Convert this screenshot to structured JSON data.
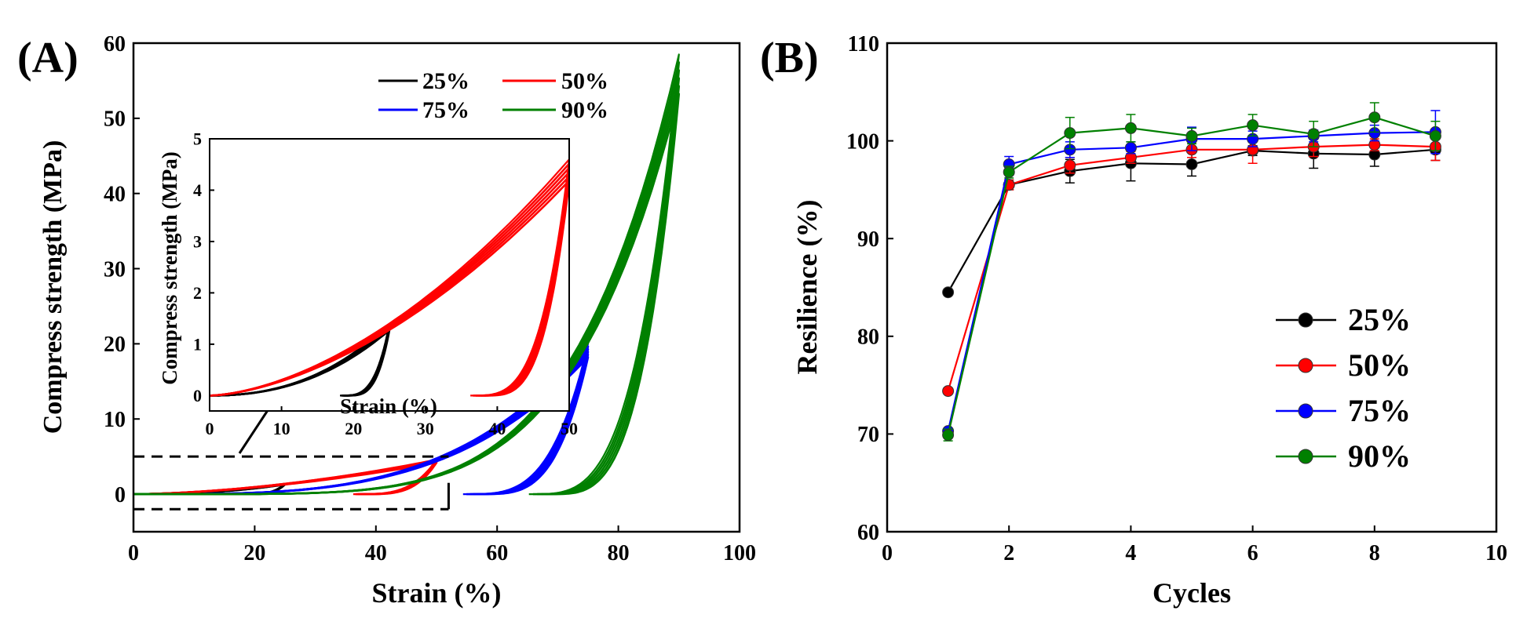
{
  "colors": {
    "s25": "#000000",
    "s50": "#ff0000",
    "s75": "#0000ff",
    "s90": "#008000"
  },
  "chart_data": [
    {
      "panel_label": "(A)",
      "type": "line",
      "title": "",
      "xlabel": "Strain (%)",
      "ylabel": "Compress strength (MPa)",
      "xlim": [
        0,
        100
      ],
      "ylim": [
        -5,
        60
      ],
      "xticks": [
        "0",
        "20",
        "40",
        "60",
        "80",
        "100"
      ],
      "yticks": [
        "0",
        "10",
        "20",
        "30",
        "40",
        "50",
        "60"
      ],
      "legend": {
        "placement": "top-right",
        "entries": [
          "25%",
          "50%",
          "75%",
          "90%"
        ]
      },
      "series": [
        {
          "name": "25%",
          "max_strain": 25,
          "peak": 1.4,
          "loading_n": 2.2,
          "unload_start": 10
        },
        {
          "name": "50%",
          "max_strain": 50,
          "peak": 4.6,
          "loading_n": 1.6,
          "unload_start": 2
        },
        {
          "name": "75%",
          "max_strain": 75,
          "peak": 20.0,
          "loading_n": 3.4,
          "unload_start": 0
        },
        {
          "name": "90%",
          "max_strain": 90,
          "peak": 58.5,
          "loading_n": 5.2,
          "unload_start": 0
        }
      ],
      "inset": {
        "xlabel": "Strain (%)",
        "ylabel": "Compress strength (MPa)",
        "xlim": [
          0,
          50
        ],
        "ylim": [
          -0.3,
          5
        ],
        "xticks": [
          "0",
          "10",
          "20",
          "30",
          "40",
          "50"
        ],
        "yticks": [
          "0",
          "1",
          "2",
          "3",
          "4",
          "5"
        ],
        "series_shown": [
          "25%",
          "50%"
        ],
        "zoom_region": {
          "x": [
            0,
            52
          ],
          "y": [
            -2,
            5
          ]
        }
      }
    },
    {
      "panel_label": "(B)",
      "type": "line",
      "title": "",
      "xlabel": "Cycles",
      "ylabel": "Resilience (%)",
      "xlim": [
        0,
        10
      ],
      "ylim": [
        60,
        110
      ],
      "xticks": [
        "0",
        "2",
        "4",
        "6",
        "8",
        "10"
      ],
      "yticks": [
        "60",
        "70",
        "80",
        "90",
        "100",
        "110"
      ],
      "legend": {
        "placement": "bottom-right",
        "entries": [
          "25%",
          "50%",
          "75%",
          "90%"
        ]
      },
      "x": [
        1,
        2,
        3,
        4,
        5,
        6,
        7,
        8,
        9
      ],
      "series": [
        {
          "name": "25%",
          "values": [
            84.5,
            95.5,
            96.9,
            97.7,
            97.6,
            99.0,
            98.7,
            98.6,
            99.1
          ],
          "errors": [
            0,
            0.5,
            1.2,
            1.8,
            1.2,
            0.5,
            1.5,
            1.2,
            1.1
          ]
        },
        {
          "name": "50%",
          "values": [
            74.4,
            95.5,
            97.5,
            98.3,
            99.1,
            99.1,
            99.4,
            99.6,
            99.4
          ],
          "errors": [
            0,
            0.5,
            0.8,
            0.6,
            0.8,
            1.4,
            1.0,
            0.6,
            1.4
          ]
        },
        {
          "name": "75%",
          "values": [
            70.3,
            97.6,
            99.1,
            99.3,
            100.2,
            100.2,
            100.5,
            100.8,
            100.9
          ],
          "errors": [
            0,
            0.8,
            0.8,
            0.6,
            1.2,
            0.8,
            0.6,
            0.8,
            2.2
          ]
        },
        {
          "name": "90%",
          "values": [
            69.9,
            96.8,
            100.8,
            101.3,
            100.5,
            101.6,
            100.7,
            102.4,
            100.5
          ],
          "errors": [
            0.6,
            0.6,
            1.6,
            1.4,
            0.8,
            1.1,
            1.3,
            1.5,
            1.5
          ]
        }
      ]
    }
  ]
}
